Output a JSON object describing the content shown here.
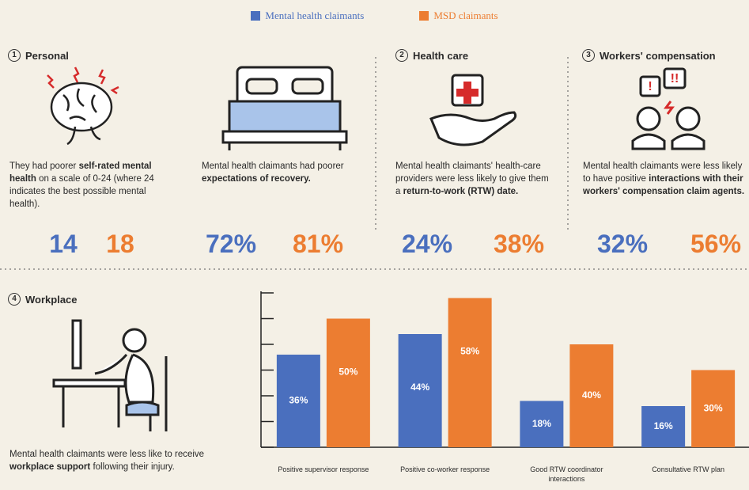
{
  "sections": [
    {
      "number": "1",
      "title": "Personal",
      "blocks": [
        {
          "text": [
            "They had poorer ",
            "self-rated mental health",
            " on a scale of 0-24 (where 24 indicates the best possible mental health)."
          ],
          "values": [
            "14",
            "18"
          ]
        },
        {
          "text": [
            "Mental health claimants had poorer ",
            "expectations of recovery."
          ],
          "values": [
            "72%",
            "81%"
          ]
        }
      ]
    },
    {
      "number": "2",
      "title": "Health care",
      "blocks": [
        {
          "text": [
            "Mental health claimants' health-care providers were less likely to give them a ",
            "return-to-work (RTW) date."
          ],
          "values": [
            "24%",
            "38%"
          ]
        }
      ]
    },
    {
      "number": "3",
      "title": "Workers' compensation",
      "blocks": [
        {
          "text": [
            "Mental health claimants were less likely to have positive ",
            "interactions with their workers' compensation claim agents."
          ],
          "values": [
            "32%",
            "56%"
          ]
        }
      ]
    },
    {
      "number": "4",
      "title": "Workplace",
      "blocks": [
        {
          "text": [
            "Mental health claimants were less like to receive ",
            "workplace support",
            " following their injury."
          ]
        }
      ]
    }
  ],
  "chart_data": {
    "type": "bar",
    "categories": [
      "Positive supervisor response",
      "Positive co-worker response",
      "Good RTW coordinator interactions",
      "Consultative RTW plan"
    ],
    "series": [
      {
        "name": "Mental health claimants",
        "color": "#4a6fbe",
        "values": [
          36,
          44,
          18,
          16
        ],
        "value_labels": [
          "36%",
          "44%",
          "18%",
          "16%"
        ]
      },
      {
        "name": "MSD claimants",
        "color": "#ec7d31",
        "values": [
          50,
          58,
          40,
          30
        ],
        "value_labels": [
          "50%",
          "58%",
          "40%",
          "30%"
        ]
      }
    ],
    "ylim": [
      0,
      60
    ],
    "yticks": [
      0,
      10,
      20,
      30,
      40,
      50,
      60
    ]
  }
}
